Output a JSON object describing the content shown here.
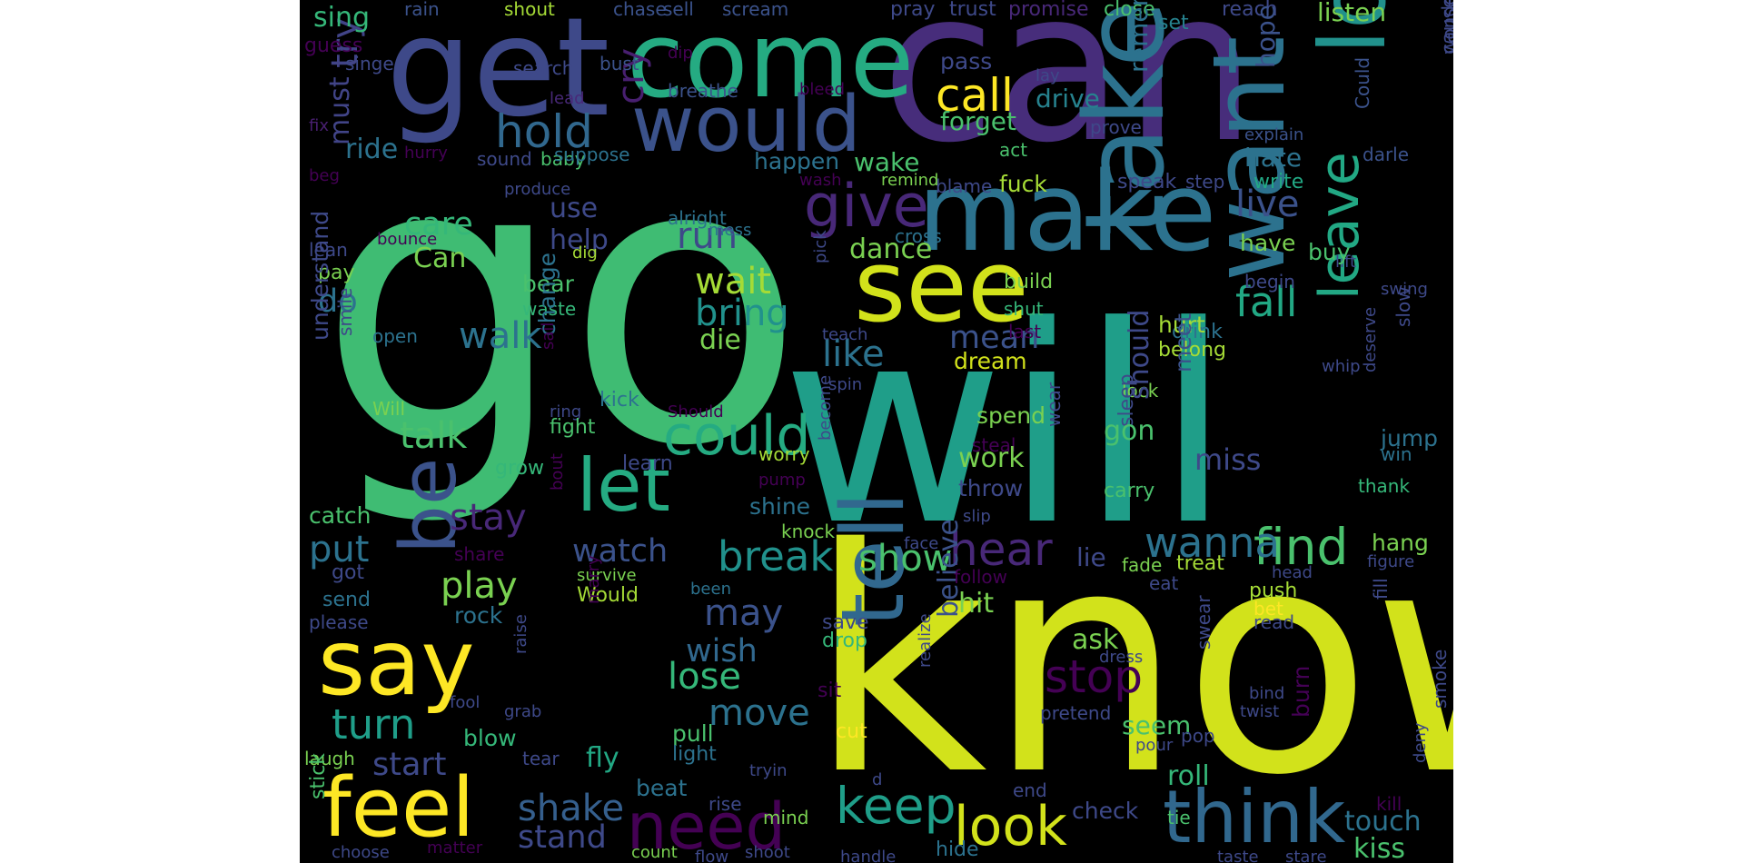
{
  "background_color": "#000000",
  "colormap": "viridis",
  "words": [
    {
      "text": "know",
      "color": "#d2e21b"
    },
    {
      "text": "go",
      "color": "#3fbc73"
    },
    {
      "text": "will",
      "color": "#1f9e89"
    },
    {
      "text": "can",
      "color": "#472d7b"
    },
    {
      "text": "get",
      "color": "#3e4989"
    },
    {
      "text": "come",
      "color": "#25ab82"
    },
    {
      "text": "make",
      "color": "#2c728e"
    },
    {
      "text": "take",
      "color": "#2c728e"
    },
    {
      "text": "want",
      "color": "#2c728e"
    },
    {
      "text": "love",
      "color": "#21918c"
    },
    {
      "text": "see",
      "color": "#d2e21b"
    },
    {
      "text": "would",
      "color": "#3b528b"
    },
    {
      "text": "tell",
      "color": "#31688e"
    },
    {
      "text": "say",
      "color": "#fde725"
    },
    {
      "text": "feel",
      "color": "#fde725"
    },
    {
      "text": "let",
      "color": "#25ab82"
    },
    {
      "text": "be",
      "color": "#3b528b"
    },
    {
      "text": "think",
      "color": "#31688e"
    },
    {
      "text": "look",
      "color": "#d2e21b"
    },
    {
      "text": "need",
      "color": "#440154"
    },
    {
      "text": "give",
      "color": "#482878"
    },
    {
      "text": "could",
      "color": "#25ab82"
    },
    {
      "text": "hold",
      "color": "#31688e"
    },
    {
      "text": "call",
      "color": "#fde725"
    },
    {
      "text": "keep",
      "color": "#1f9e89"
    },
    {
      "text": "leave",
      "color": "#22a884"
    },
    {
      "text": "hear",
      "color": "#482878"
    },
    {
      "text": "find",
      "color": "#4ac16d"
    },
    {
      "text": "stop",
      "color": "#440154"
    },
    {
      "text": "show",
      "color": "#4ac16d"
    },
    {
      "text": "live",
      "color": "#3b528b"
    },
    {
      "text": "wanna",
      "color": "#2c728e"
    },
    {
      "text": "break",
      "color": "#21918c"
    },
    {
      "text": "play",
      "color": "#7ad151"
    },
    {
      "text": "put",
      "color": "#2c728e"
    },
    {
      "text": "turn",
      "color": "#1f9e89"
    },
    {
      "text": "stay",
      "color": "#482878"
    },
    {
      "text": "walk",
      "color": "#2c728e"
    },
    {
      "text": "talk",
      "color": "#4ac16d"
    },
    {
      "text": "wait",
      "color": "#a5db36"
    },
    {
      "text": "bring",
      "color": "#21918c"
    },
    {
      "text": "fall",
      "color": "#22a884"
    },
    {
      "text": "cry",
      "color": "#481f70"
    },
    {
      "text": "try",
      "color": "#414487"
    },
    {
      "text": "must",
      "color": "#414487"
    },
    {
      "text": "start",
      "color": "#3e4989"
    },
    {
      "text": "shake",
      "color": "#355f8d"
    },
    {
      "text": "stand",
      "color": "#3e4989"
    },
    {
      "text": "lose",
      "color": "#35b779"
    },
    {
      "text": "move",
      "color": "#2c728e"
    },
    {
      "text": "may",
      "color": "#3b528b"
    },
    {
      "text": "wish",
      "color": "#31688e"
    },
    {
      "text": "believe",
      "color": "#3b528b"
    },
    {
      "text": "like",
      "color": "#2c728e"
    },
    {
      "text": "mean",
      "color": "#3b528b"
    },
    {
      "text": "run",
      "color": "#3e4989"
    },
    {
      "text": "die",
      "color": "#7ad151"
    },
    {
      "text": "watch",
      "color": "#3b528b"
    },
    {
      "text": "do",
      "color": "#2c728e"
    },
    {
      "text": "Can",
      "color": "#7ad151"
    },
    {
      "text": "care",
      "color": "#35b779"
    },
    {
      "text": "help",
      "color": "#3e4989"
    },
    {
      "text": "use",
      "color": "#3e4989"
    },
    {
      "text": "dance",
      "color": "#7ad151"
    },
    {
      "text": "forget",
      "color": "#4ac16d"
    },
    {
      "text": "drive",
      "color": "#26828e"
    },
    {
      "text": "pass",
      "color": "#3e4989"
    },
    {
      "text": "ride",
      "color": "#2c728e"
    },
    {
      "text": "sing",
      "color": "#35b779"
    },
    {
      "text": "guess",
      "color": "#440154"
    },
    {
      "text": "singe",
      "color": "#3e4989"
    },
    {
      "text": "rain",
      "color": "#3b528b"
    },
    {
      "text": "shout",
      "color": "#a5db36"
    },
    {
      "text": "chase",
      "color": "#3b528b"
    },
    {
      "text": "sell",
      "color": "#3b528b"
    },
    {
      "text": "scream",
      "color": "#3b528b"
    },
    {
      "text": "pray",
      "color": "#3e4989"
    },
    {
      "text": "trust",
      "color": "#3e4989"
    },
    {
      "text": "promise",
      "color": "#482878"
    },
    {
      "text": "close",
      "color": "#4ac16d"
    },
    {
      "text": "set",
      "color": "#26828e"
    },
    {
      "text": "reach",
      "color": "#3e4989"
    },
    {
      "text": "listen",
      "color": "#7ad151"
    },
    {
      "text": "search",
      "color": "#3e4989"
    },
    {
      "text": "bust",
      "color": "#3b528b"
    },
    {
      "text": "dip",
      "color": "#440154"
    },
    {
      "text": "breathe",
      "color": "#3b528b"
    },
    {
      "text": "bleed",
      "color": "#440154"
    },
    {
      "text": "lay",
      "color": "#3e4989"
    },
    {
      "text": "lead",
      "color": "#482878"
    },
    {
      "text": "fix",
      "color": "#481f70"
    },
    {
      "text": "hurry",
      "color": "#440154"
    },
    {
      "text": "sound",
      "color": "#3e4989"
    },
    {
      "text": "baby",
      "color": "#4ac16d"
    },
    {
      "text": "beg",
      "color": "#440154"
    },
    {
      "text": "suppose",
      "color": "#2c728e"
    },
    {
      "text": "happen",
      "color": "#2c728e"
    },
    {
      "text": "wake",
      "color": "#4ac16d"
    },
    {
      "text": "remember",
      "color": "#2c728e"
    },
    {
      "text": "hope",
      "color": "#3b528b"
    },
    {
      "text": "explain",
      "color": "#3b528b"
    },
    {
      "text": "hate",
      "color": "#2c728e"
    },
    {
      "text": "Could",
      "color": "#3b528b"
    },
    {
      "text": "wonder",
      "color": "#3e4989"
    },
    {
      "text": "cause",
      "color": "#3e4989"
    },
    {
      "text": "darle",
      "color": "#3b528b"
    },
    {
      "text": "prove",
      "color": "#3e4989"
    },
    {
      "text": "act",
      "color": "#4ac16d"
    },
    {
      "text": "blame",
      "color": "#3e4989"
    },
    {
      "text": "remind",
      "color": "#7ad151"
    },
    {
      "text": "wash",
      "color": "#440154"
    },
    {
      "text": "fuck",
      "color": "#a5db36"
    },
    {
      "text": "speak",
      "color": "#3e4989"
    },
    {
      "text": "step",
      "color": "#3e4989"
    },
    {
      "text": "write",
      "color": "#22a884"
    },
    {
      "text": "produce",
      "color": "#3e4989"
    },
    {
      "text": "alright",
      "color": "#2c728e"
    },
    {
      "text": "bounce",
      "color": "#440154"
    },
    {
      "text": "lean",
      "color": "#3e4989"
    },
    {
      "text": "dig",
      "color": "#a5db36"
    },
    {
      "text": "mess",
      "color": "#2c728e"
    },
    {
      "text": "pay",
      "color": "#7ad151"
    },
    {
      "text": "bear",
      "color": "#4ac16d"
    },
    {
      "text": "waste",
      "color": "#35b779"
    },
    {
      "text": "cross",
      "color": "#2c728e"
    },
    {
      "text": "build",
      "color": "#7ad151"
    },
    {
      "text": "shut",
      "color": "#35b779"
    },
    {
      "text": "last",
      "color": "#440154"
    },
    {
      "text": "drink",
      "color": "#2c728e"
    },
    {
      "text": "begin",
      "color": "#3e4989"
    },
    {
      "text": "lift",
      "color": "#3e4989"
    },
    {
      "text": "swing",
      "color": "#3e4989"
    },
    {
      "text": "slow",
      "color": "#3e4989"
    },
    {
      "text": "whip",
      "color": "#3e4989"
    },
    {
      "text": "deserve",
      "color": "#3e4989"
    },
    {
      "text": "pick",
      "color": "#3e4989"
    },
    {
      "text": "teach",
      "color": "#3e4989"
    },
    {
      "text": "dream",
      "color": "#d2e21b"
    },
    {
      "text": "spin",
      "color": "#3e4989"
    },
    {
      "text": "lock",
      "color": "#7ad151"
    },
    {
      "text": "belong",
      "color": "#a5db36"
    },
    {
      "text": "hurt",
      "color": "#a5db36"
    },
    {
      "text": "have",
      "color": "#7ad151"
    },
    {
      "text": "buy",
      "color": "#4ac16d"
    },
    {
      "text": "should",
      "color": "#3e4989"
    },
    {
      "text": "sleep",
      "color": "#3e4989"
    },
    {
      "text": "meet",
      "color": "#3b528b"
    },
    {
      "text": "gon",
      "color": "#4ac16d"
    },
    {
      "text": "miss",
      "color": "#3e4989"
    },
    {
      "text": "jump",
      "color": "#2c728e"
    },
    {
      "text": "win",
      "color": "#2c728e"
    },
    {
      "text": "thank",
      "color": "#35b779"
    },
    {
      "text": "understand",
      "color": "#3e4989"
    },
    {
      "text": "smile",
      "color": "#3e4989"
    },
    {
      "text": "open",
      "color": "#2c728e"
    },
    {
      "text": "change",
      "color": "#2c728e"
    },
    {
      "text": "sail",
      "color": "#440154"
    },
    {
      "text": "Will",
      "color": "#7ad151"
    },
    {
      "text": "ring",
      "color": "#3e4989"
    },
    {
      "text": "kick",
      "color": "#2c728e"
    },
    {
      "text": "Should",
      "color": "#440154"
    },
    {
      "text": "fight",
      "color": "#4ac16d"
    },
    {
      "text": "grow",
      "color": "#35b779"
    },
    {
      "text": "learn",
      "color": "#3e4989"
    },
    {
      "text": "worry",
      "color": "#a5db36"
    },
    {
      "text": "pump",
      "color": "#440154"
    },
    {
      "text": "become",
      "color": "#3e4989"
    },
    {
      "text": "steal",
      "color": "#440154"
    },
    {
      "text": "wear",
      "color": "#3e4989"
    },
    {
      "text": "spend",
      "color": "#7ad151"
    },
    {
      "text": "work",
      "color": "#7ad151"
    },
    {
      "text": "throw",
      "color": "#3e4989"
    },
    {
      "text": "carry",
      "color": "#4ac16d"
    },
    {
      "text": "slip",
      "color": "#3e4989"
    },
    {
      "text": "shine",
      "color": "#2c728e"
    },
    {
      "text": "knock",
      "color": "#7ad151"
    },
    {
      "text": "face",
      "color": "#3e4989"
    },
    {
      "text": "catch",
      "color": "#4ac16d"
    },
    {
      "text": "bout",
      "color": "#440154"
    },
    {
      "text": "share",
      "color": "#440154"
    },
    {
      "text": "got",
      "color": "#3e4989"
    },
    {
      "text": "send",
      "color": "#2c728e"
    },
    {
      "text": "please",
      "color": "#3e4989"
    },
    {
      "text": "rock",
      "color": "#2c728e"
    },
    {
      "text": "survive",
      "color": "#7ad151"
    },
    {
      "text": "been",
      "color": "#2c728e"
    },
    {
      "text": "Would",
      "color": "#a5db36"
    },
    {
      "text": "marry",
      "color": "#440154"
    },
    {
      "text": "follow",
      "color": "#440154"
    },
    {
      "text": "lie",
      "color": "#3e4989"
    },
    {
      "text": "fade",
      "color": "#7ad151"
    },
    {
      "text": "treat",
      "color": "#a5db36"
    },
    {
      "text": "eat",
      "color": "#3e4989"
    },
    {
      "text": "head",
      "color": "#3e4989"
    },
    {
      "text": "hang",
      "color": "#7ad151"
    },
    {
      "text": "figure",
      "color": "#3e4989"
    },
    {
      "text": "push",
      "color": "#a5db36"
    },
    {
      "text": "bet",
      "color": "#fde725"
    },
    {
      "text": "read",
      "color": "#3e4989"
    },
    {
      "text": "fill",
      "color": "#3e4989"
    },
    {
      "text": "hit",
      "color": "#7ad151"
    },
    {
      "text": "save",
      "color": "#3e4989"
    },
    {
      "text": "drop",
      "color": "#35b779"
    },
    {
      "text": "ask",
      "color": "#7ad151"
    },
    {
      "text": "dress",
      "color": "#3e4989"
    },
    {
      "text": "swear",
      "color": "#3e4989"
    },
    {
      "text": "bind",
      "color": "#3e4989"
    },
    {
      "text": "twist",
      "color": "#3e4989"
    },
    {
      "text": "raise",
      "color": "#3e4989"
    },
    {
      "text": "fool",
      "color": "#3e4989"
    },
    {
      "text": "grab",
      "color": "#3e4989"
    },
    {
      "text": "blow",
      "color": "#35b779"
    },
    {
      "text": "tear",
      "color": "#3e4989"
    },
    {
      "text": "laugh",
      "color": "#7ad151"
    },
    {
      "text": "fly",
      "color": "#22a884"
    },
    {
      "text": "pull",
      "color": "#4ac16d"
    },
    {
      "text": "light",
      "color": "#2c728e"
    },
    {
      "text": "tryin",
      "color": "#3e4989"
    },
    {
      "text": "sit",
      "color": "#440154"
    },
    {
      "text": "realize",
      "color": "#3e4989"
    },
    {
      "text": "cut",
      "color": "#fde725"
    },
    {
      "text": "pretend",
      "color": "#3e4989"
    },
    {
      "text": "seem",
      "color": "#4ac16d"
    },
    {
      "text": "pour",
      "color": "#3e4989"
    },
    {
      "text": "pop",
      "color": "#3e4989"
    },
    {
      "text": "roll",
      "color": "#35b779"
    },
    {
      "text": "burn",
      "color": "#440154"
    },
    {
      "text": "smoke",
      "color": "#3e4989"
    },
    {
      "text": "deny",
      "color": "#3e4989"
    },
    {
      "text": "kill",
      "color": "#440154"
    },
    {
      "text": "touch",
      "color": "#2c728e"
    },
    {
      "text": "kiss",
      "color": "#4ac16d"
    },
    {
      "text": "beat",
      "color": "#2c728e"
    },
    {
      "text": "rise",
      "color": "#3e4989"
    },
    {
      "text": "mind",
      "color": "#7ad151"
    },
    {
      "text": "end",
      "color": "#3e4989"
    },
    {
      "text": "tie",
      "color": "#4ac16d"
    },
    {
      "text": "check",
      "color": "#3e4989"
    },
    {
      "text": "hide",
      "color": "#2c728e"
    },
    {
      "text": "handle",
      "color": "#3e4989"
    },
    {
      "text": "taste",
      "color": "#3e4989"
    },
    {
      "text": "stare",
      "color": "#3e4989"
    },
    {
      "text": "stick",
      "color": "#4ac16d"
    },
    {
      "text": "choose",
      "color": "#3e4989"
    },
    {
      "text": "matter",
      "color": "#440154"
    },
    {
      "text": "count",
      "color": "#7ad151"
    },
    {
      "text": "flow",
      "color": "#3e4989"
    },
    {
      "text": "shoot",
      "color": "#3e4989"
    },
    {
      "text": "d",
      "color": "#3e4989"
    }
  ]
}
